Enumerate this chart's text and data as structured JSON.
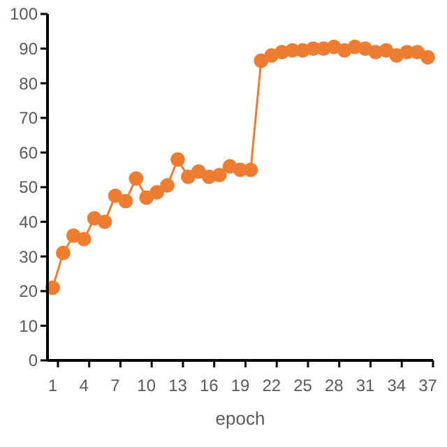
{
  "chart_data": {
    "type": "line",
    "xlabel": "epoch",
    "categories": [
      "1",
      null,
      null,
      "4",
      null,
      null,
      "7",
      null,
      null,
      "10",
      null,
      null,
      "13",
      null,
      null,
      "16",
      null,
      null,
      "19",
      null,
      null,
      "22",
      null,
      null,
      "25",
      null,
      null,
      "28",
      null,
      null,
      "31",
      null,
      null,
      "34",
      null,
      null,
      "37"
    ],
    "series": [
      {
        "color": "#ed7d31",
        "values": [
          21,
          31,
          36,
          35,
          41,
          40,
          47.5,
          46,
          52.5,
          47,
          48.5,
          50.5,
          58,
          53,
          54.5,
          53,
          53.5,
          56,
          55,
          55,
          86.5,
          88,
          89,
          89.5,
          89.5,
          90,
          90,
          90.5,
          89.5,
          90.5,
          90,
          89,
          89.5,
          88,
          89,
          89,
          87.5
        ]
      }
    ],
    "ylim": [
      0,
      100
    ],
    "yticks": [
      0,
      10,
      20,
      30,
      40,
      50,
      60,
      70,
      80,
      90,
      100
    ],
    "marker": "circle",
    "grid": false
  }
}
